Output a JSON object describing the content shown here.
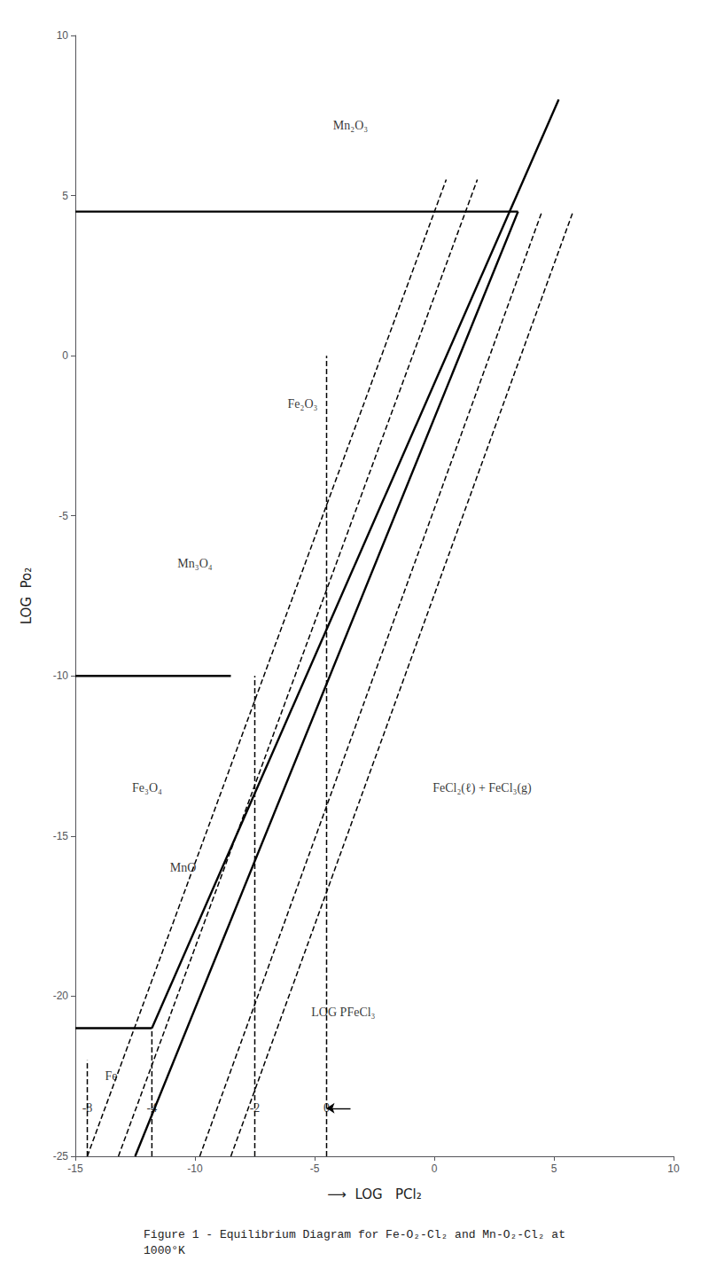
{
  "chart_data": {
    "type": "line",
    "title": "Figure 1 - Equilibrium Diagram for Fe-O₂-Cl₂ and Mn-O₂-Cl₂ at\n1000°K",
    "xlabel": "⟶  LOG   PCl₂",
    "ylabel": "LOG  Po₂",
    "xlim": [
      -15,
      10
    ],
    "ylim": [
      -25,
      10
    ],
    "xticks": [
      -15,
      -10,
      -5,
      0,
      5,
      10
    ],
    "yticks": [
      -25,
      -20,
      -15,
      -10,
      -5,
      0,
      5,
      10
    ],
    "grid": false,
    "color": "#000000",
    "series": [
      {
        "x": [
          -15,
          3.5
        ],
        "values": [
          4.5,
          4.5
        ],
        "line_style": "solid"
      },
      {
        "x": [
          -15,
          -8.5
        ],
        "values": [
          -10.0,
          -10.0
        ],
        "line_style": "solid"
      },
      {
        "x": [
          -15,
          -11.8
        ],
        "values": [
          -21.0,
          -21.0
        ],
        "line_style": "solid"
      },
      {
        "x": [
          -12.5,
          3.5
        ],
        "values": [
          -25.0,
          4.5
        ],
        "line_style": "solid"
      },
      {
        "x": [
          -11.8,
          5.2
        ],
        "values": [
          -21.0,
          8.0
        ],
        "line_style": "solid"
      },
      {
        "x": [
          -14.5,
          0.5
        ],
        "values": [
          -25.0,
          5.5
        ],
        "line_style": "dashed"
      },
      {
        "x": [
          -13.2,
          1.8
        ],
        "values": [
          -25.0,
          5.5
        ],
        "line_style": "dashed"
      },
      {
        "x": [
          -9.8,
          4.5
        ],
        "values": [
          -25.0,
          4.5
        ],
        "line_style": "dashed"
      },
      {
        "x": [
          -8.5,
          5.8
        ],
        "values": [
          -25.0,
          4.5
        ],
        "line_style": "dashed"
      },
      {
        "x": [
          -14.5,
          -14.5
        ],
        "values": [
          -25,
          -22.0
        ],
        "line_style": "dashed"
      },
      {
        "x": [
          -11.8,
          -11.8
        ],
        "values": [
          -25,
          -21.0
        ],
        "line_style": "dashed"
      },
      {
        "x": [
          -7.5,
          -7.5
        ],
        "values": [
          -25,
          -10.0
        ],
        "line_style": "dashed"
      },
      {
        "x": [
          -4.5,
          -4.5
        ],
        "values": [
          -25,
          0.0
        ],
        "line_style": "dashed"
      },
      {
        "x": [
          -3.5,
          -4.5
        ],
        "values": [
          -23.5,
          -23.5
        ],
        "line_style": "solid",
        "marker": "arrow"
      }
    ],
    "annotations": [
      {
        "text": "-8",
        "x": -14.5,
        "y": -23.5
      },
      {
        "text": "-4",
        "x": -11.8,
        "y": -23.5
      },
      {
        "text": "-2",
        "x": -7.5,
        "y": -23.5
      },
      {
        "text": "0",
        "x": -4.5,
        "y": -23.5
      },
      {
        "text": "LOG PFeCl₃",
        "x": -3.8,
        "y": -20.5
      },
      {
        "text": "Mn₂O₃",
        "x": -3.5,
        "y": 7.2
      },
      {
        "text": "Mn₃O₄",
        "x": -10.0,
        "y": -6.5
      },
      {
        "text": "MnO",
        "x": -10.5,
        "y": -16.0
      },
      {
        "text": "Fe₂O₃",
        "x": -5.5,
        "y": -1.5
      },
      {
        "text": "Fe₃O₄",
        "x": -12.0,
        "y": -13.5
      },
      {
        "text": "Fe",
        "x": -13.5,
        "y": -22.5
      },
      {
        "text": "FeCl₂(ℓ) + FeCl₃(g)",
        "x": 2.0,
        "y": -13.5
      }
    ]
  }
}
